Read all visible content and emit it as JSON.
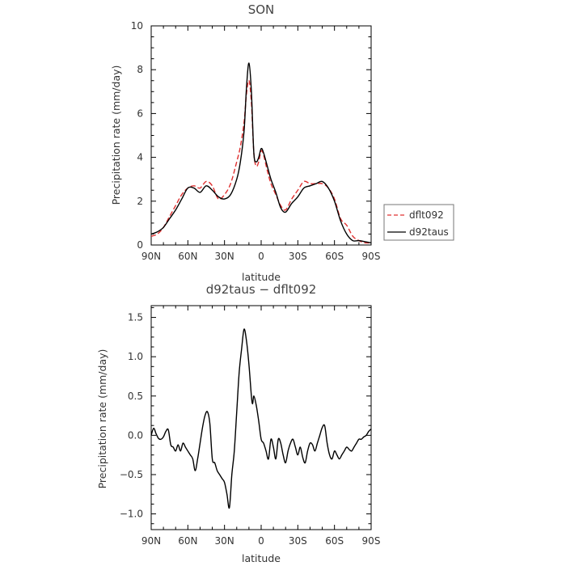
{
  "chart_data": [
    {
      "type": "line",
      "title": "SON",
      "xlabel": "latitude",
      "ylabel": "Precipitation rate (mm/day)",
      "xlim": [
        90,
        -90
      ],
      "ylim": [
        0,
        10
      ],
      "x_ticks": [
        90,
        60,
        30,
        0,
        -30,
        -60,
        -90
      ],
      "x_tick_labels": [
        "90N",
        "60N",
        "30N",
        "0",
        "30S",
        "60S",
        "90S"
      ],
      "y_ticks": [
        0,
        2,
        4,
        6,
        8,
        10
      ],
      "y_tick_labels": [
        "0",
        "2",
        "4",
        "6",
        "8",
        "10"
      ],
      "grid": false,
      "legend_position": "right",
      "series": [
        {
          "name": "dflt092",
          "color": "#e03030",
          "dash": "dashed",
          "x": [
            90,
            85,
            80,
            75,
            70,
            65,
            60,
            55,
            50,
            45,
            40,
            35,
            30,
            25,
            20,
            17,
            14,
            12,
            10,
            8,
            6,
            4,
            2,
            0,
            -2,
            -5,
            -8,
            -12,
            -16,
            -20,
            -25,
            -30,
            -35,
            -40,
            -45,
            -50,
            -55,
            -60,
            -65,
            -70,
            -75,
            -80,
            -85,
            -90
          ],
          "values": [
            0.4,
            0.5,
            0.8,
            1.3,
            1.8,
            2.3,
            2.6,
            2.7,
            2.6,
            2.9,
            2.7,
            2.1,
            2.3,
            2.8,
            3.8,
            4.5,
            5.6,
            6.9,
            7.5,
            6.5,
            4.2,
            3.6,
            3.8,
            4.3,
            4.1,
            3.4,
            2.8,
            2.3,
            1.8,
            1.6,
            2.1,
            2.5,
            2.9,
            2.8,
            2.8,
            2.8,
            2.6,
            2.1,
            1.2,
            0.9,
            0.4,
            0.2,
            0.1,
            0.1
          ]
        },
        {
          "name": "d92taus",
          "color": "#000000",
          "dash": "solid",
          "x": [
            90,
            85,
            80,
            75,
            70,
            65,
            60,
            55,
            50,
            45,
            40,
            35,
            30,
            25,
            20,
            17,
            14,
            12,
            10,
            8,
            6,
            4,
            2,
            0,
            -2,
            -5,
            -8,
            -12,
            -16,
            -20,
            -25,
            -30,
            -35,
            -40,
            -45,
            -50,
            -55,
            -60,
            -65,
            -70,
            -75,
            -80,
            -85,
            -90
          ],
          "values": [
            0.5,
            0.6,
            0.8,
            1.2,
            1.6,
            2.1,
            2.6,
            2.6,
            2.4,
            2.7,
            2.5,
            2.2,
            2.1,
            2.3,
            3.0,
            3.8,
            5.2,
            7.2,
            8.3,
            7.0,
            4.2,
            3.8,
            4.0,
            4.4,
            4.2,
            3.6,
            3.0,
            2.4,
            1.7,
            1.5,
            1.9,
            2.2,
            2.6,
            2.7,
            2.8,
            2.9,
            2.6,
            2.0,
            1.1,
            0.5,
            0.2,
            0.2,
            0.15,
            0.1
          ]
        }
      ]
    },
    {
      "type": "line",
      "title": "d92taus − dflt092",
      "xlabel": "latitude",
      "ylabel": "Precipitation rate (mm/day)",
      "xlim": [
        90,
        -90
      ],
      "ylim": [
        -1.2,
        1.65
      ],
      "x_ticks": [
        90,
        60,
        30,
        0,
        -30,
        -60,
        -90
      ],
      "x_tick_labels": [
        "90N",
        "60N",
        "30N",
        "0",
        "30S",
        "60S",
        "90S"
      ],
      "y_ticks": [
        -1.0,
        -0.5,
        0.0,
        0.5,
        1.0,
        1.5
      ],
      "y_tick_labels": [
        "−1.0",
        "−0.5",
        "0.0",
        "0.5",
        "1.0",
        "1.5"
      ],
      "grid": false,
      "series": [
        {
          "color": "#000000",
          "dash": "solid",
          "x": [
            90,
            88,
            86,
            84,
            82,
            80,
            78,
            76,
            74,
            72,
            70,
            68,
            66,
            64,
            62,
            60,
            58,
            56,
            54,
            52,
            50,
            48,
            46,
            44,
            42,
            40,
            38,
            36,
            34,
            32,
            30,
            28,
            26,
            24,
            22,
            20,
            18,
            16,
            14,
            12,
            10,
            8,
            7,
            6,
            4,
            2,
            0,
            -2,
            -4,
            -6,
            -8,
            -10,
            -12,
            -14,
            -16,
            -18,
            -20,
            -22,
            -24,
            -26,
            -28,
            -30,
            -32,
            -34,
            -36,
            -38,
            -40,
            -42,
            -44,
            -46,
            -48,
            -50,
            -52,
            -54,
            -56,
            -58,
            -60,
            -62,
            -64,
            -66,
            -68,
            -70,
            -72,
            -74,
            -76,
            -78,
            -80,
            -82,
            -84,
            -86,
            -88,
            -90
          ],
          "values": [
            0.0,
            0.09,
            0.02,
            -0.04,
            -0.05,
            -0.02,
            0.05,
            0.07,
            -0.12,
            -0.15,
            -0.2,
            -0.12,
            -0.2,
            -0.1,
            -0.15,
            -0.2,
            -0.25,
            -0.3,
            -0.45,
            -0.3,
            -0.1,
            0.1,
            0.25,
            0.3,
            0.15,
            -0.3,
            -0.35,
            -0.45,
            -0.5,
            -0.55,
            -0.6,
            -0.75,
            -0.92,
            -0.5,
            -0.2,
            0.3,
            0.8,
            1.1,
            1.35,
            1.2,
            0.9,
            0.5,
            0.4,
            0.5,
            0.38,
            0.18,
            -0.05,
            -0.1,
            -0.2,
            -0.3,
            -0.05,
            -0.15,
            -0.3,
            -0.05,
            -0.1,
            -0.25,
            -0.35,
            -0.2,
            -0.1,
            -0.05,
            -0.15,
            -0.25,
            -0.15,
            -0.28,
            -0.35,
            -0.2,
            -0.1,
            -0.12,
            -0.2,
            -0.1,
            0.0,
            0.1,
            0.12,
            -0.1,
            -0.25,
            -0.3,
            -0.2,
            -0.25,
            -0.3,
            -0.25,
            -0.2,
            -0.15,
            -0.18,
            -0.2,
            -0.15,
            -0.1,
            -0.05,
            -0.05,
            -0.02,
            0.0,
            0.05,
            0.08
          ]
        }
      ]
    }
  ]
}
